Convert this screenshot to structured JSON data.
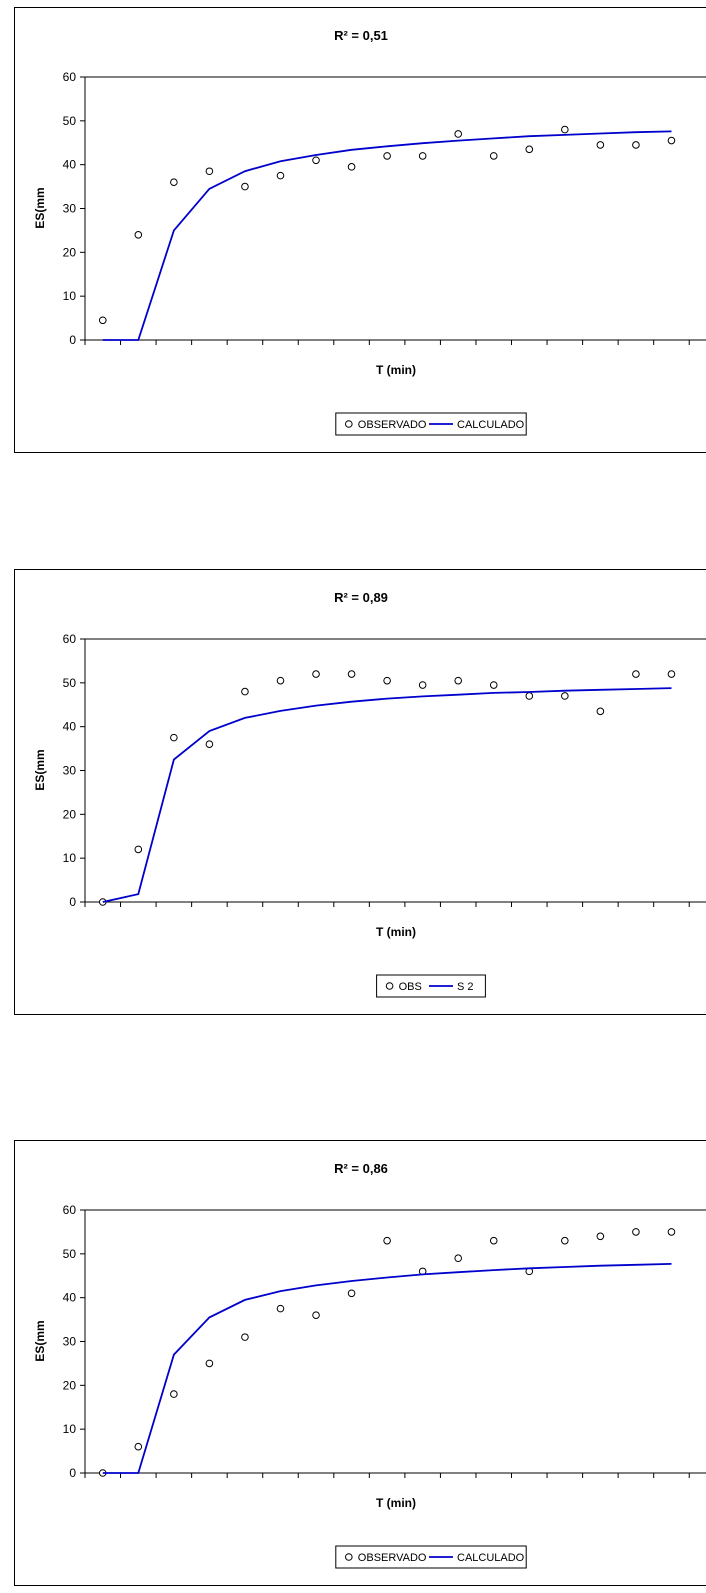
{
  "chart_data": [
    {
      "type": "scatter",
      "title_text": "R² = 0,51",
      "xlabel": "T (min)",
      "ylabel": "ES(mm",
      "ylim": [
        0,
        60
      ],
      "yticks": [
        0,
        10,
        20,
        30,
        40,
        50,
        60
      ],
      "x_tick_labels": "none",
      "grid": "major-y-top-line-only",
      "legend_position": "bottom-center",
      "series": [
        {
          "name": "OBSERVADO",
          "style": "markers",
          "color": "#000000",
          "x": [
            1,
            2,
            3,
            4,
            5,
            6,
            7,
            8,
            9,
            10,
            11,
            12,
            13,
            14,
            15,
            16,
            17
          ],
          "y": [
            4.5,
            24,
            36,
            38.5,
            35,
            37.5,
            41,
            39.5,
            42,
            42,
            47,
            42,
            43.5,
            48,
            44.5,
            44.5,
            45.5
          ]
        },
        {
          "name": "CALCULADO",
          "style": "line",
          "color": "#0000CC",
          "x": [
            1,
            2,
            3,
            4,
            5,
            6,
            7,
            8,
            9,
            10,
            11,
            12,
            13,
            14,
            15,
            16,
            17
          ],
          "y": [
            0,
            0,
            25,
            34.5,
            38.5,
            40.8,
            42.2,
            43.4,
            44.2,
            44.9,
            45.5,
            46,
            46.5,
            46.8,
            47.1,
            47.4,
            47.6
          ]
        }
      ]
    },
    {
      "type": "scatter",
      "title_text": "R² = 0,89",
      "xlabel": "T (min)",
      "ylabel": "ES(mm",
      "ylim": [
        0,
        60
      ],
      "yticks": [
        0,
        10,
        20,
        30,
        40,
        50,
        60
      ],
      "x_tick_labels": "none",
      "grid": "major-y-top-line-only",
      "legend_position": "bottom-center",
      "series": [
        {
          "name": "OBS",
          "style": "markers",
          "color": "#000000",
          "x": [
            1,
            2,
            3,
            4,
            5,
            6,
            7,
            8,
            9,
            10,
            11,
            12,
            13,
            14,
            15,
            16,
            17
          ],
          "y": [
            0,
            12,
            37.5,
            36,
            48,
            50.5,
            52,
            52,
            50.5,
            49.5,
            50.5,
            49.5,
            47,
            47,
            43.5,
            52,
            52
          ]
        },
        {
          "name": "S 2",
          "style": "line",
          "color": "#0000CC",
          "x": [
            1,
            2,
            3,
            4,
            5,
            6,
            7,
            8,
            9,
            10,
            11,
            12,
            13,
            14,
            15,
            16,
            17
          ],
          "y": [
            0,
            1.8,
            32.5,
            39,
            42,
            43.6,
            44.8,
            45.7,
            46.4,
            46.9,
            47.3,
            47.7,
            47.9,
            48.2,
            48.4,
            48.6,
            48.8
          ]
        }
      ]
    },
    {
      "type": "scatter",
      "title_text": "R² = 0,86",
      "xlabel": "T (min)",
      "ylabel": "ES(mm",
      "ylim": [
        0,
        60
      ],
      "yticks": [
        0,
        10,
        20,
        30,
        40,
        50,
        60
      ],
      "x_tick_labels": "none",
      "grid": "major-y-top-line-only",
      "legend_position": "bottom-center",
      "series": [
        {
          "name": "OBSERVADO",
          "style": "markers",
          "color": "#000000",
          "x": [
            1,
            2,
            3,
            4,
            5,
            6,
            7,
            8,
            9,
            10,
            11,
            12,
            13,
            14,
            15,
            16,
            17
          ],
          "y": [
            0,
            6,
            18,
            25,
            31,
            37.5,
            36,
            41,
            53,
            46,
            49,
            53,
            46,
            53,
            54,
            55,
            55
          ]
        },
        {
          "name": "CALCULADO",
          "style": "line",
          "color": "#0000CC",
          "x": [
            1,
            2,
            3,
            4,
            5,
            6,
            7,
            8,
            9,
            10,
            11,
            12,
            13,
            14,
            15,
            16,
            17
          ],
          "y": [
            0,
            0,
            27,
            35.5,
            39.5,
            41.5,
            42.8,
            43.8,
            44.6,
            45.3,
            45.8,
            46.3,
            46.7,
            47,
            47.3,
            47.5,
            47.7
          ]
        }
      ]
    }
  ]
}
